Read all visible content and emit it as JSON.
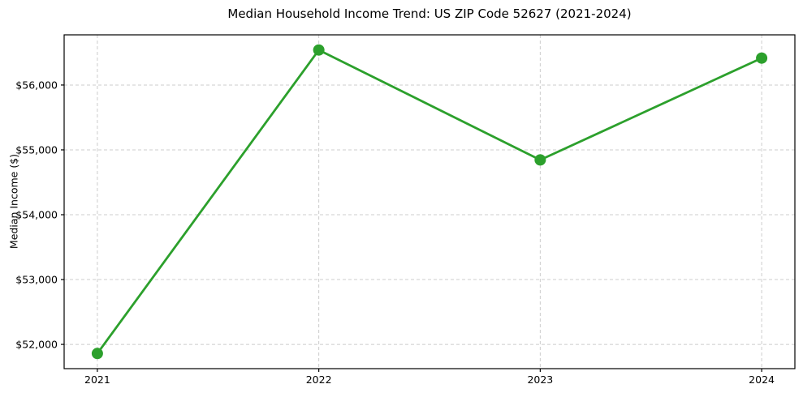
{
  "chart_data": {
    "type": "line",
    "title": "Median Household Income Trend: US ZIP Code 52627 (2021-2024)",
    "xlabel": "",
    "ylabel": "Median Income ($)",
    "categories": [
      2021,
      2022,
      2023,
      2024
    ],
    "series": [
      {
        "name": "Median Household Income",
        "values": [
          51860,
          56540,
          54845,
          56415
        ]
      }
    ],
    "x_ticks": [
      {
        "value": 2021,
        "label": "2021"
      },
      {
        "value": 2022,
        "label": "2022"
      },
      {
        "value": 2023,
        "label": "2023"
      },
      {
        "value": 2024,
        "label": "2024"
      }
    ],
    "y_ticks": [
      {
        "value": 52000,
        "label": "$52,000"
      },
      {
        "value": 53000,
        "label": "$53,000"
      },
      {
        "value": 54000,
        "label": "$54,000"
      },
      {
        "value": 55000,
        "label": "$55,000"
      },
      {
        "value": 56000,
        "label": "$56,000"
      }
    ],
    "xlim": [
      2020.85,
      2024.15
    ],
    "ylim": [
      51626,
      56774
    ],
    "grid": true,
    "grid_style": "dashed",
    "legend_position": "none",
    "colors": {
      "line": "#2ca02c",
      "marker": "#2ca02c",
      "grid": "#cccccc",
      "spine": "#000000",
      "text": "#000000",
      "background": "#ffffff"
    }
  }
}
